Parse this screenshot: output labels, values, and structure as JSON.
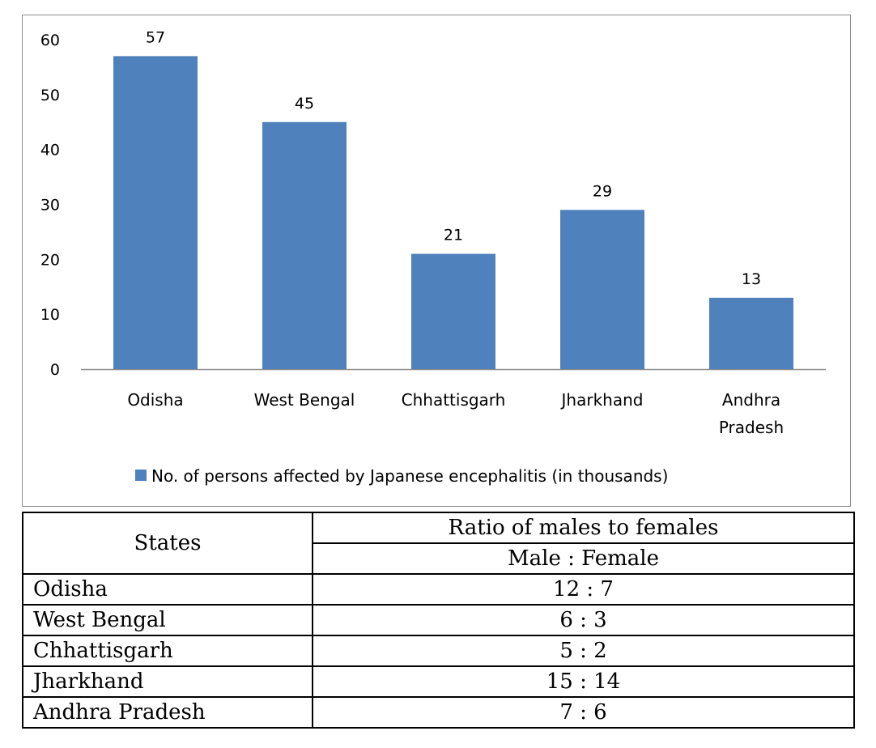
{
  "chart_data": {
    "type": "bar",
    "categories": [
      "Odisha",
      "West Bengal",
      "Chhattisgarh",
      "Jharkhand",
      "Andhra Pradesh"
    ],
    "category_lines": [
      [
        "Odisha"
      ],
      [
        "West Bengal"
      ],
      [
        "Chhattisgarh"
      ],
      [
        "Jharkhand"
      ],
      [
        "Andhra",
        "Pradesh"
      ]
    ],
    "series": [
      {
        "name": "No. of persons affected by Japanese encephalitis (in thousands)",
        "values": [
          57,
          45,
          21,
          29,
          13
        ],
        "color": "#4f81bd"
      }
    ],
    "ylim": [
      0,
      60
    ],
    "yticks": [
      0,
      10,
      20,
      30,
      40,
      50,
      60
    ],
    "data_labels": true,
    "grid": false,
    "legend_position": "bottom"
  },
  "table": {
    "header_states": "States",
    "header_ratio": "Ratio of males to females",
    "header_sub": "Male : Female",
    "rows": [
      {
        "state": "Odisha",
        "ratio": "12 : 7"
      },
      {
        "state": "West Bengal",
        "ratio": "6 : 3"
      },
      {
        "state": "Chhattisgarh",
        "ratio": "5 : 2"
      },
      {
        "state": "Jharkhand",
        "ratio": "15 : 14"
      },
      {
        "state": "Andhra Pradesh",
        "ratio": "7 : 6"
      }
    ]
  }
}
